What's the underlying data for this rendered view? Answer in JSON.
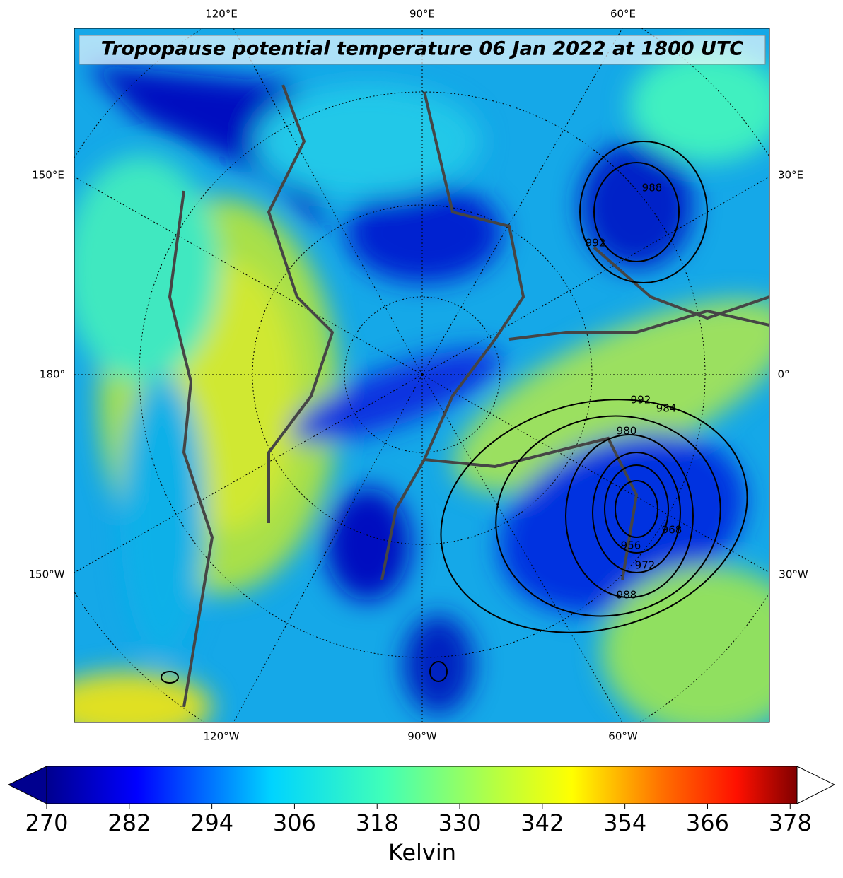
{
  "map": {
    "title": "Tropopause potential temperature 06 Jan 2022 at 1800 UTC",
    "top_labels": [
      "120°E",
      "90°E",
      "60°E"
    ],
    "bottom_labels": [
      "120°W",
      "90°W",
      "60°W"
    ],
    "left_labels": [
      "150°E",
      "180°",
      "150°W"
    ],
    "right_labels": [
      "30°E",
      "0°",
      "30°W"
    ],
    "contour_labels": [
      "992",
      "984",
      "980",
      "988",
      "956",
      "972",
      "988",
      "992",
      "968"
    ]
  },
  "colorbar": {
    "lim": [
      270,
      379
    ],
    "ticks": [
      270,
      282,
      294,
      306,
      318,
      330,
      342,
      354,
      366,
      378
    ],
    "label": "Kelvin"
  }
}
